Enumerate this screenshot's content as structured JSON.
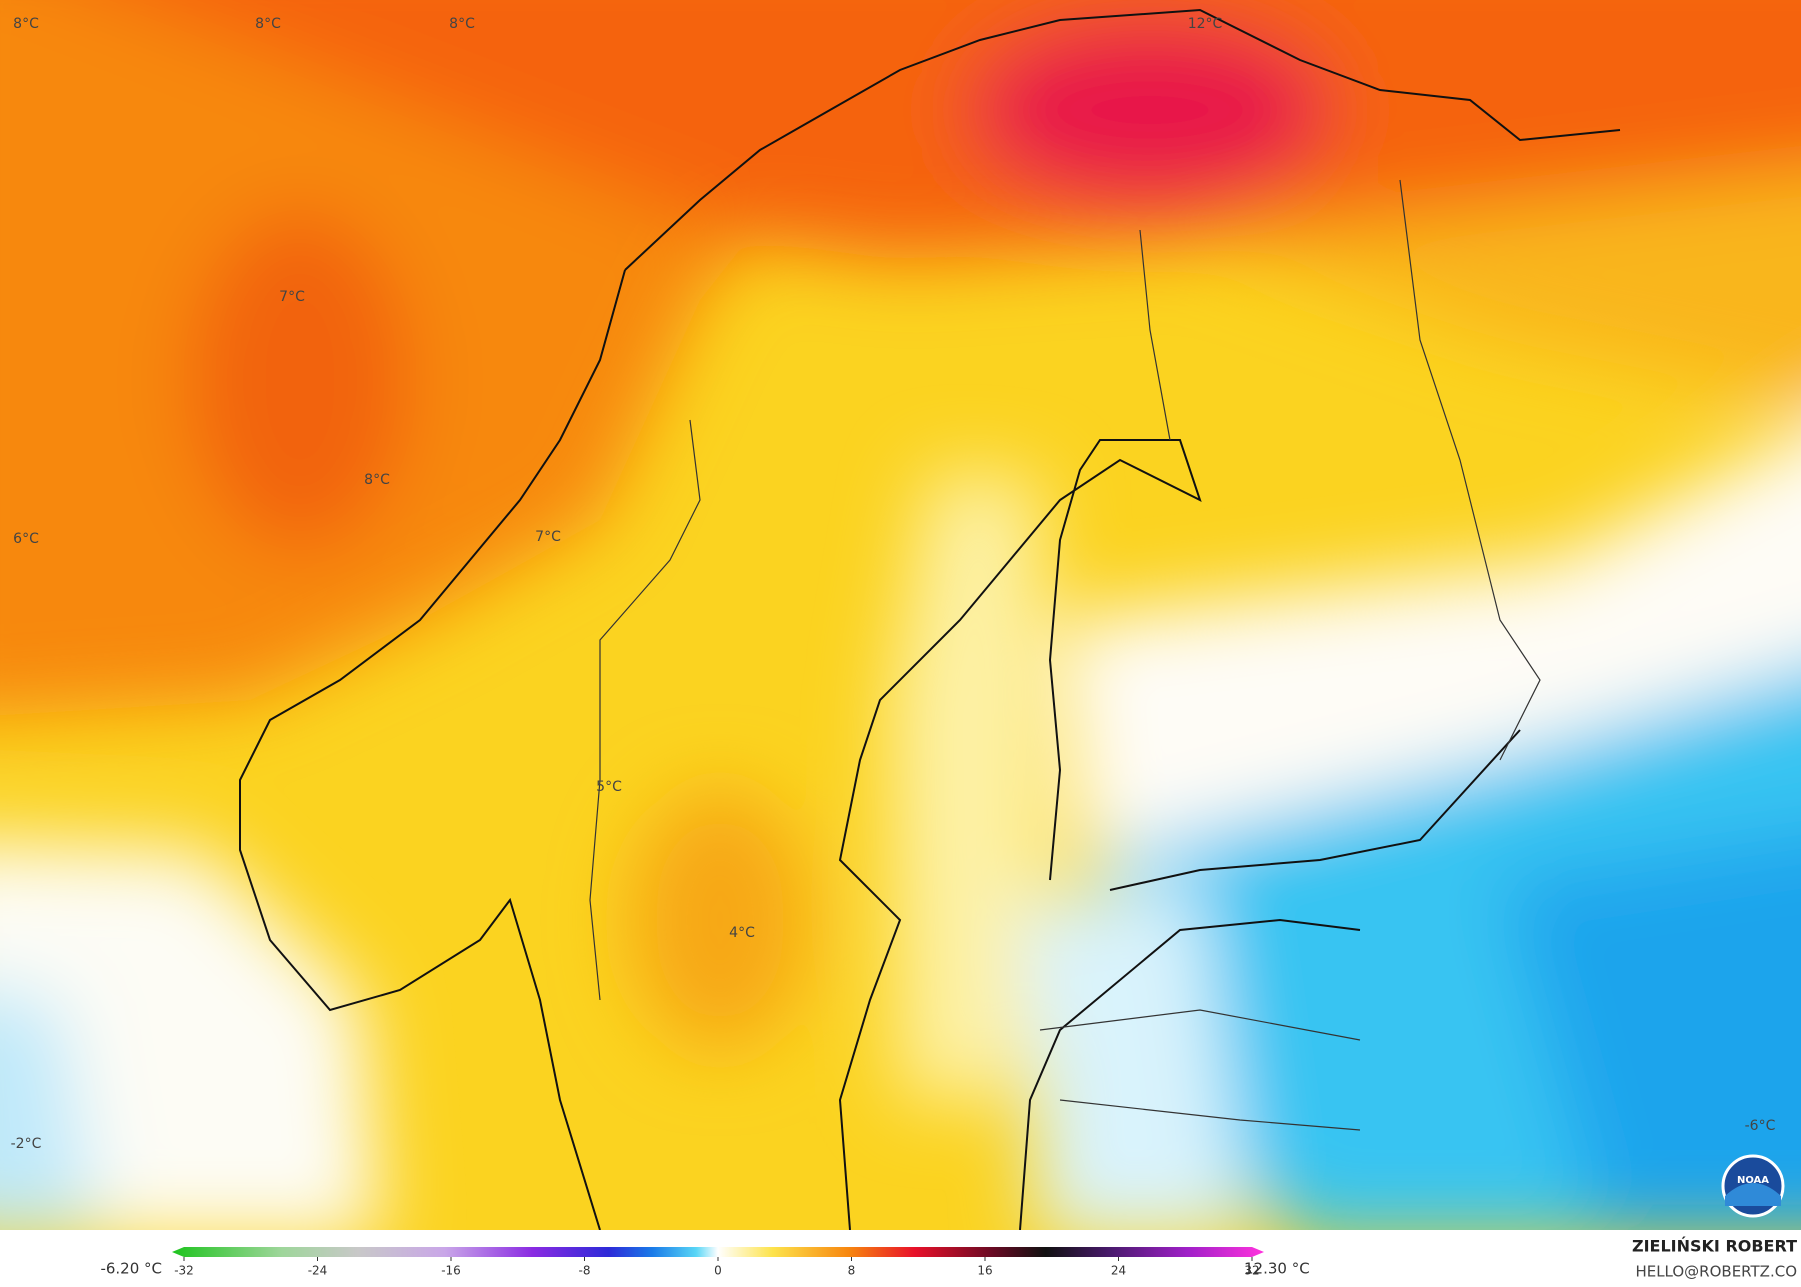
{
  "map": {
    "labels": [
      "8°C",
      "8°C",
      "8°C",
      "12°C",
      "7°C",
      "8°C",
      "6°C",
      "7°C",
      "5°C",
      "4°C",
      "-2°C",
      "-6°C"
    ],
    "logo": "NOAA"
  },
  "colorbar": {
    "min_label": "-6.20 °C",
    "max_label": "12.30 °C",
    "range": [
      -32,
      32
    ],
    "ticks": [
      -32,
      -24,
      -16,
      -8,
      0,
      8,
      16,
      24,
      32
    ]
  },
  "credit": {
    "name": "ZIELIŃSKI ROBERT",
    "contact": "HELLO@ROBERTZ.CO"
  }
}
